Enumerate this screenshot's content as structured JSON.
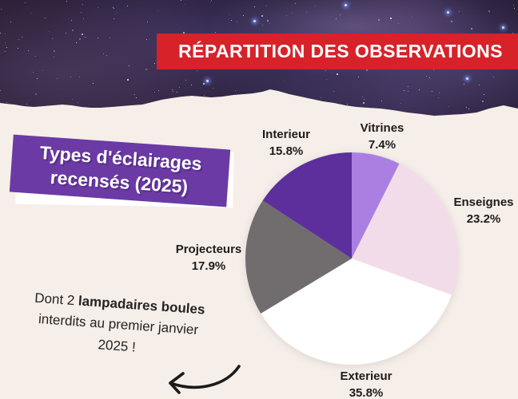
{
  "background_color": "#F6EEE8",
  "header": {
    "banner_label": "RÉPARTITION DES OBSERVATIONS",
    "banner_color": "#D7222A",
    "text_color": "#FFFFFF"
  },
  "title_card": {
    "line1": "Types d'éclairages",
    "line2": "recensés (2025)",
    "background_color": "#6B3AA5",
    "text_color": "#FFFFFF"
  },
  "note": {
    "part1": "Dont 2 ",
    "part2": "lampadaires boules",
    "part3": " interdits au premier janvier 2025 !"
  },
  "chart_data": {
    "type": "pie",
    "title": "Types d'éclairages recensés (2025)",
    "start_angle_deg": 0,
    "direction": "clockwise",
    "legend_position": "around-slices",
    "slices": [
      {
        "label": "Vitrines",
        "value": 7.4,
        "pct_label": "7.4%",
        "color": "#AB7FE2"
      },
      {
        "label": "Enseignes",
        "value": 23.2,
        "pct_label": "23.2%",
        "color": "#F3DCE9"
      },
      {
        "label": "Exterieur",
        "value": 35.8,
        "pct_label": "35.8%",
        "color": "#FFFFFF"
      },
      {
        "label": "Projecteurs",
        "value": 17.9,
        "pct_label": "17.9%",
        "color": "#716D6E"
      },
      {
        "label": "Interieur",
        "value": 15.8,
        "pct_label": "15.8%",
        "color": "#5C2F9C"
      }
    ]
  },
  "decorations": {
    "sky_image": "milky-way-starfield-photo",
    "arrow": "curved-arrow-pointing-left"
  }
}
